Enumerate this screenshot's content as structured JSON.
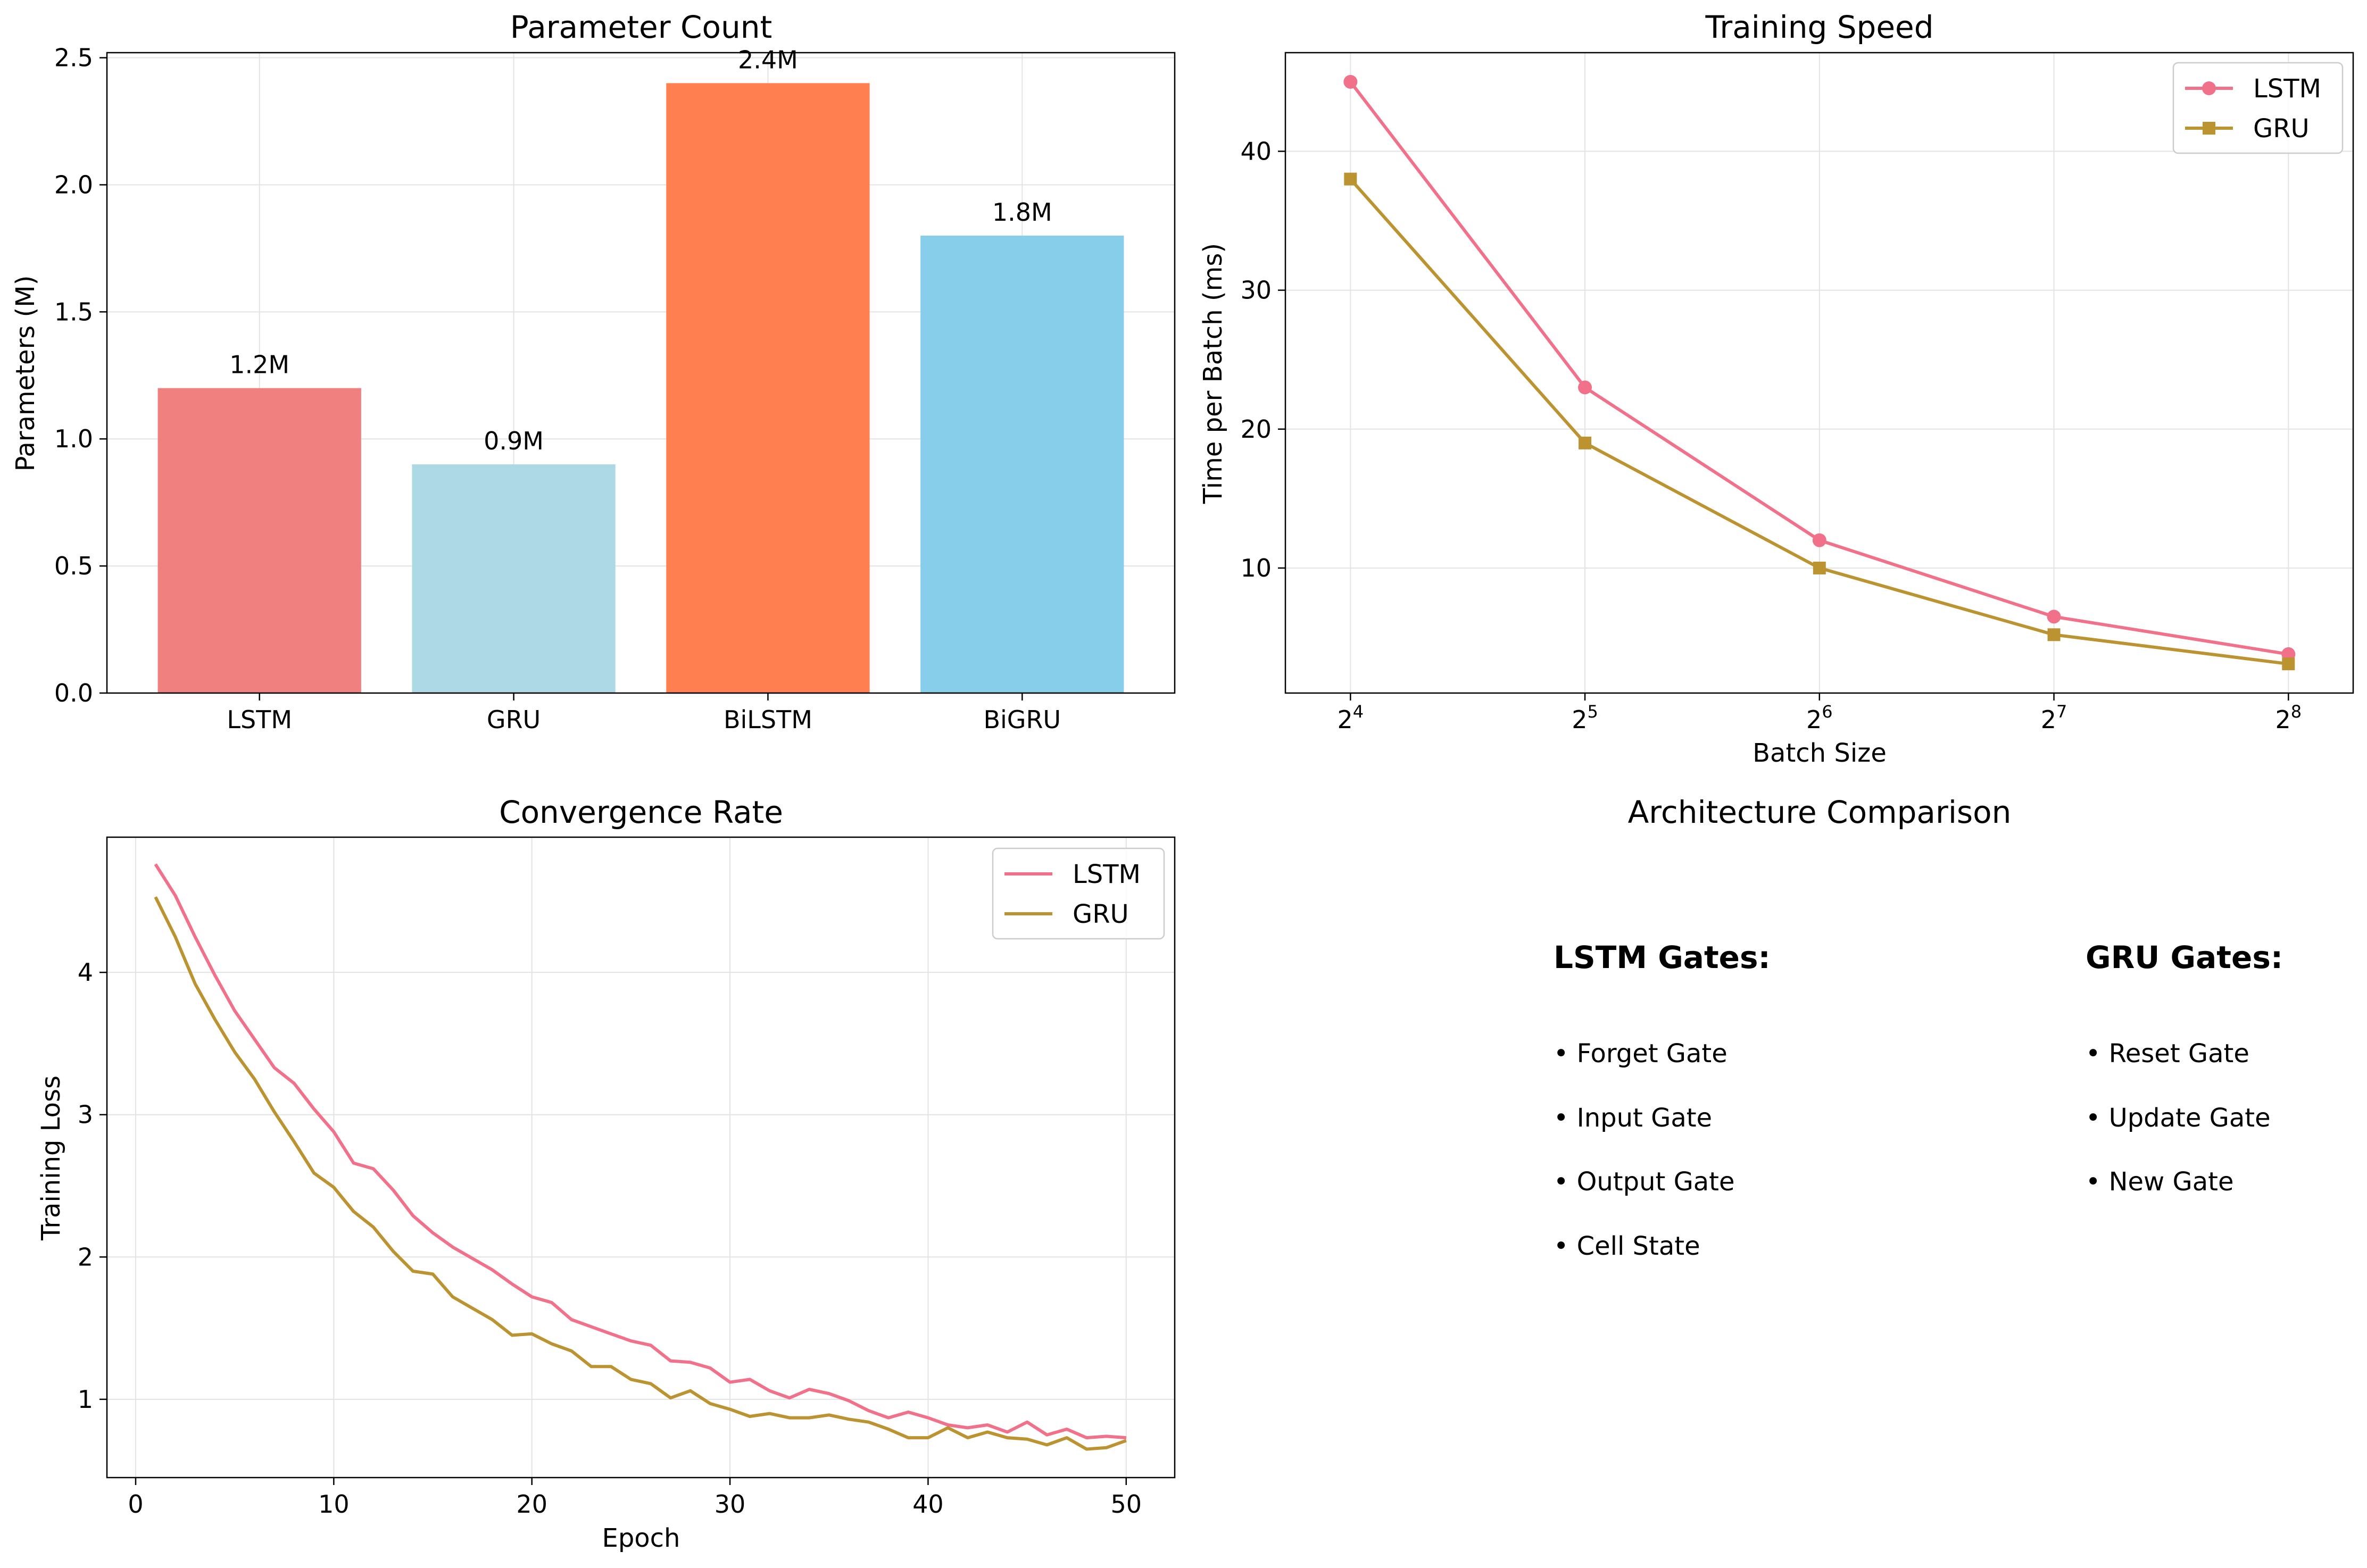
{
  "colors": {
    "lstm": "#f2718a",
    "gru": "#bb9330",
    "bar_lstm": "#f08080",
    "bar_gru": "#add8e6",
    "bar_bilstm": "#ff7f50",
    "bar_bigru": "#87ceeb",
    "grid": "#e3e3e3"
  },
  "chart_data": [
    {
      "type": "bar",
      "title": "Parameter Count",
      "xlabel": "",
      "ylabel": "Parameters (M)",
      "categories": [
        "LSTM",
        "GRU",
        "BiLSTM",
        "BiGRU"
      ],
      "values": [
        1.2,
        0.9,
        2.4,
        1.8
      ],
      "value_labels": [
        "1.2M",
        "0.9M",
        "2.4M",
        "1.8M"
      ],
      "ylim": [
        0,
        2.52
      ],
      "yticks": [
        0,
        0.5,
        1,
        1.5,
        2,
        2.5
      ],
      "ytick_labels": [
        "0.0",
        "0.5",
        "1.0",
        "1.5",
        "2.0",
        "2.5"
      ],
      "grid": true
    },
    {
      "type": "line",
      "title": "Training Speed",
      "xlabel": "Batch Size",
      "ylabel": "Time per Batch (ms)",
      "xscale": "log2",
      "x": [
        16,
        32,
        64,
        128,
        256
      ],
      "xtick_labels": [
        {
          "base": "2",
          "exp": "4"
        },
        {
          "base": "2",
          "exp": "5"
        },
        {
          "base": "2",
          "exp": "6"
        },
        {
          "base": "2",
          "exp": "7"
        },
        {
          "base": "2",
          "exp": "8"
        }
      ],
      "xlim": [
        13.2,
        310
      ],
      "ylim": [
        1.0,
        47.1
      ],
      "yticks": [
        10,
        20,
        30,
        40
      ],
      "ytick_labels": [
        "10",
        "20",
        "30",
        "40"
      ],
      "series": [
        {
          "name": "LSTM",
          "marker": "circle",
          "values": [
            45,
            23,
            12,
            6.5,
            3.8
          ]
        },
        {
          "name": "GRU",
          "marker": "square",
          "values": [
            38,
            19,
            10,
            5.2,
            3.1
          ]
        }
      ],
      "legend": "top-right",
      "grid": true
    },
    {
      "type": "line",
      "title": "Convergence Rate",
      "xlabel": "Epoch",
      "ylabel": "Training Loss",
      "x": [
        1,
        2,
        3,
        4,
        5,
        6,
        7,
        8,
        9,
        10,
        11,
        12,
        13,
        14,
        15,
        16,
        17,
        18,
        19,
        20,
        21,
        22,
        23,
        24,
        25,
        26,
        27,
        28,
        29,
        30,
        31,
        32,
        33,
        34,
        35,
        36,
        37,
        38,
        39,
        40,
        41,
        42,
        43,
        44,
        45,
        46,
        47,
        48,
        49,
        50
      ],
      "xlim": [
        -1.45,
        52.45
      ],
      "xticks": [
        0,
        10,
        20,
        30,
        40,
        50
      ],
      "xtick_labels": [
        "0",
        "10",
        "20",
        "30",
        "40",
        "50"
      ],
      "ylim": [
        0.45,
        4.95
      ],
      "yticks": [
        1,
        2,
        3,
        4
      ],
      "ytick_labels": [
        "1",
        "2",
        "3",
        "4"
      ],
      "series": [
        {
          "name": "LSTM",
          "values": [
            4.76,
            4.54,
            4.25,
            3.98,
            3.73,
            3.53,
            3.33,
            3.22,
            3.04,
            2.88,
            2.66,
            2.62,
            2.47,
            2.29,
            2.17,
            2.07,
            1.99,
            1.91,
            1.81,
            1.72,
            1.68,
            1.56,
            1.51,
            1.46,
            1.41,
            1.38,
            1.27,
            1.26,
            1.22,
            1.12,
            1.14,
            1.06,
            1.01,
            1.07,
            1.04,
            0.99,
            0.92,
            0.87,
            0.91,
            0.87,
            0.82,
            0.8,
            0.82,
            0.77,
            0.84,
            0.75,
            0.79,
            0.73,
            0.74,
            0.73
          ]
        },
        {
          "name": "GRU",
          "values": [
            4.53,
            4.25,
            3.92,
            3.67,
            3.44,
            3.25,
            3.02,
            2.81,
            2.59,
            2.49,
            2.32,
            2.21,
            2.04,
            1.9,
            1.88,
            1.72,
            1.64,
            1.56,
            1.45,
            1.46,
            1.39,
            1.34,
            1.23,
            1.23,
            1.14,
            1.11,
            1.01,
            1.06,
            0.97,
            0.93,
            0.88,
            0.9,
            0.87,
            0.87,
            0.89,
            0.86,
            0.84,
            0.79,
            0.73,
            0.73,
            0.8,
            0.73,
            0.77,
            0.73,
            0.72,
            0.68,
            0.73,
            0.65,
            0.66,
            0.71
          ]
        }
      ],
      "legend": "top-right",
      "grid": true
    }
  ],
  "panel4": {
    "title": "Architecture Comparison",
    "lstm_heading": "LSTM Gates:",
    "lstm_items": [
      "• Forget Gate",
      "• Input Gate",
      "• Output Gate",
      "• Cell State"
    ],
    "gru_heading": "GRU Gates:",
    "gru_items": [
      "• Reset Gate",
      "• Update Gate",
      "• New Gate"
    ]
  }
}
